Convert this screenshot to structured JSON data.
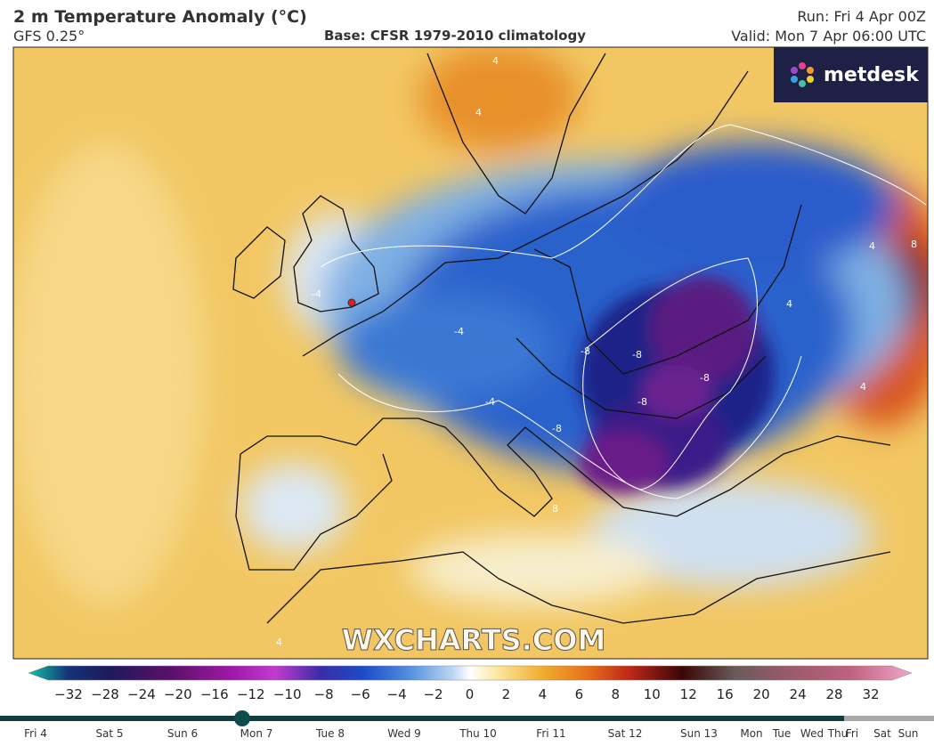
{
  "header": {
    "title": "2 m Temperature Anomaly (°C)",
    "model": "GFS 0.25°",
    "base": "Base: CFSR 1979-2010 climatology",
    "run": "Run: Fri 4 Apr 00Z",
    "valid": "Valid: Mon 7 Apr 06:00 UTC"
  },
  "logo": "metdesk",
  "watermark": "WXCHARTS.COM",
  "contour_labels": [
    "4",
    "4",
    "-4",
    "-4",
    "-4",
    "-8",
    "-8",
    "-8",
    "-8",
    "-8",
    "8",
    "4",
    "4",
    "4",
    "8",
    "4"
  ],
  "colorbar": {
    "labels": [
      "−32",
      "−28",
      "−24",
      "−20",
      "−16",
      "−12",
      "−10",
      "−8",
      "−6",
      "−4",
      "−2",
      "0",
      "2",
      "4",
      "6",
      "8",
      "10",
      "12",
      "16",
      "20",
      "24",
      "28",
      "32"
    ]
  },
  "timeline": {
    "days": [
      "Fri 4",
      "Sat 5",
      "Sun 6",
      "Mon 7",
      "Tue 8",
      "Wed 9",
      "Thu 10",
      "Fri 11",
      "Sat 12",
      "Sun 13",
      "Mon",
      "Tue",
      "Wed",
      "Thu",
      "Fri",
      "Sat",
      "Sun"
    ]
  }
}
